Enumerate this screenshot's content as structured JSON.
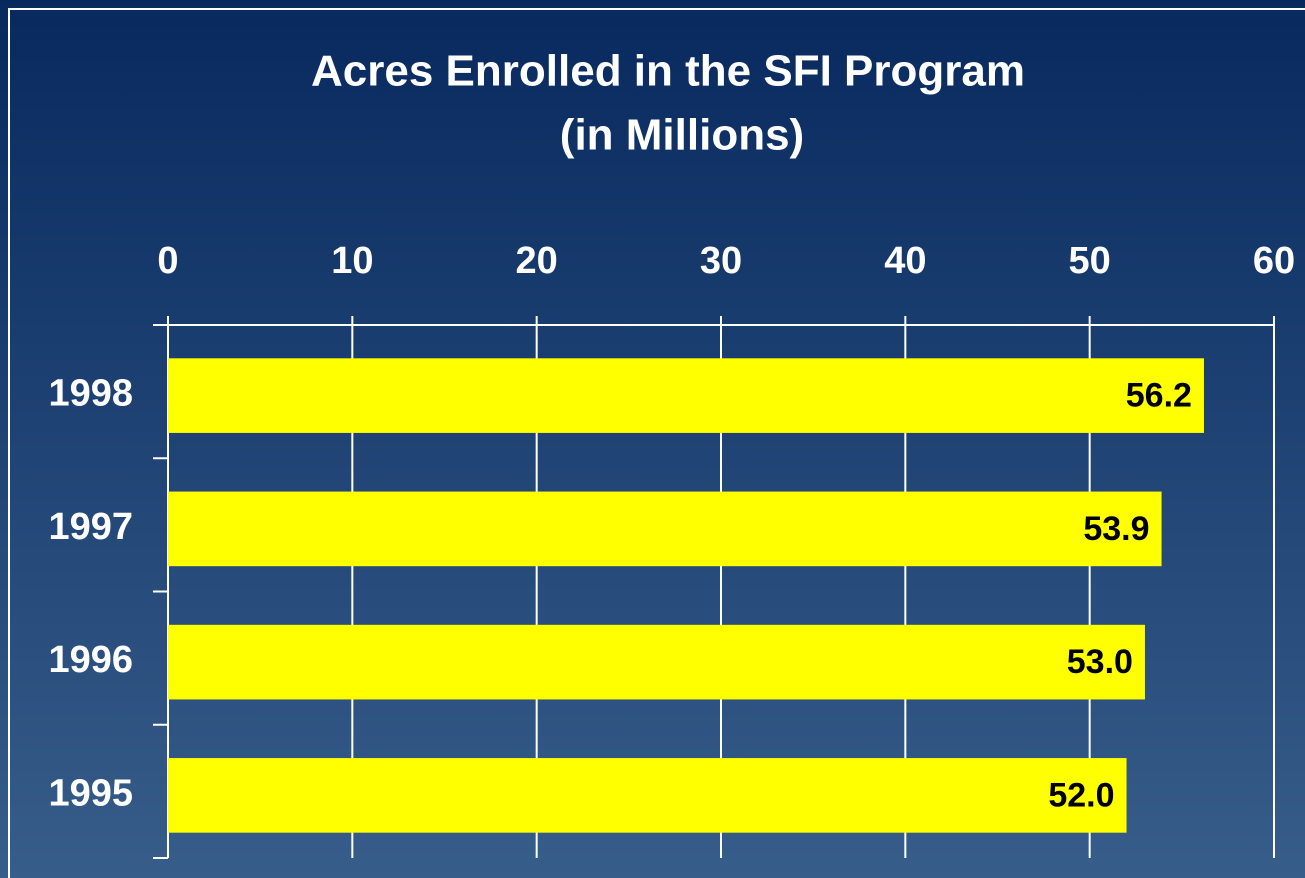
{
  "chart_data": {
    "type": "bar",
    "orientation": "horizontal",
    "title": "Acres Enrolled in the SFI Program",
    "subtitle": "(in Millions)",
    "categories": [
      "1998",
      "1997",
      "1996",
      "1995"
    ],
    "values": [
      56.2,
      53.9,
      53.0,
      52.0
    ],
    "value_labels": [
      "56.2",
      "53.9",
      "53.0",
      "52.0"
    ],
    "color": "#ffff00",
    "xlim": [
      0,
      60
    ],
    "xticks": [
      0,
      10,
      20,
      30,
      40,
      50,
      60
    ],
    "grid": true
  }
}
